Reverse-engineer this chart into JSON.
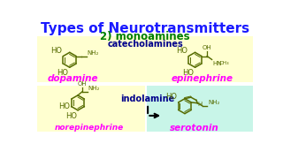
{
  "title": "Types of Neurotransmitters",
  "title_color": "#1a1aff",
  "subtitle": "2) monoamines",
  "subtitle_color": "#008000",
  "bg_color": "#ffffff",
  "catecholamine_box_color": "#ffffd0",
  "indolamine_box_color": "#c8f5e8",
  "label_dopamine": "dopamine",
  "label_epinephrine": "epinephrine",
  "label_norepinephrine": "norepinephrine",
  "label_serotonin": "serotonin",
  "label_catecholamines": "catecholamines",
  "label_indolamine": "indolamine",
  "compound_label_color": "#ff00ff",
  "category_label_color": "#00008b",
  "struct_color": "#556b00"
}
